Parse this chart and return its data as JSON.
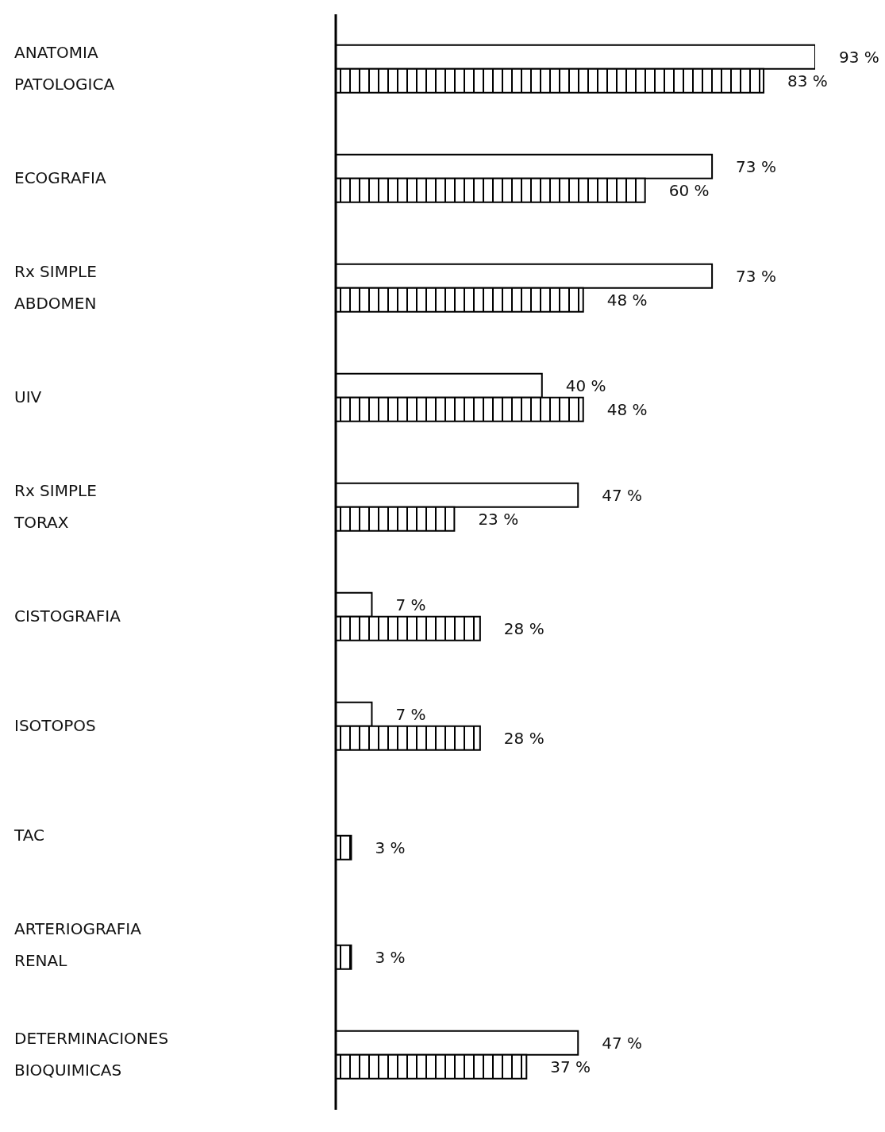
{
  "chart_data": {
    "type": "bar",
    "orientation": "horizontal",
    "categories": [
      "ANATOMIA\nPATOLOGICA",
      "ECOGRAFIA",
      "Rx SIMPLE\nABDOMEN",
      "UIV",
      "Rx SIMPLE\nTORAX",
      "CISTOGRAFIA",
      "ISOTOPOS",
      "TAC",
      "ARTERIOGRAFIA\nRENAL",
      "DETERMINACIONES\nBIOQUIMICAS"
    ],
    "series": [
      {
        "color": "#ffffff",
        "values": [
          93,
          73,
          73,
          40,
          47,
          7,
          7,
          null,
          null,
          47
        ],
        "value_labels": [
          "93 %",
          "73 %",
          "73 %",
          "40 %",
          "47 %",
          "7 %",
          "7 %",
          null,
          null,
          "47 %"
        ]
      },
      {
        "color": "#000000",
        "values": [
          83,
          60,
          48,
          48,
          23,
          28,
          28,
          3,
          3,
          37
        ],
        "value_labels": [
          "83 %",
          "60 %",
          "48 %",
          "48 %",
          "23 %",
          "28 %",
          "28 %",
          "3 %",
          "3 %",
          "37 %"
        ]
      }
    ],
    "tick_labels": "y"
  }
}
